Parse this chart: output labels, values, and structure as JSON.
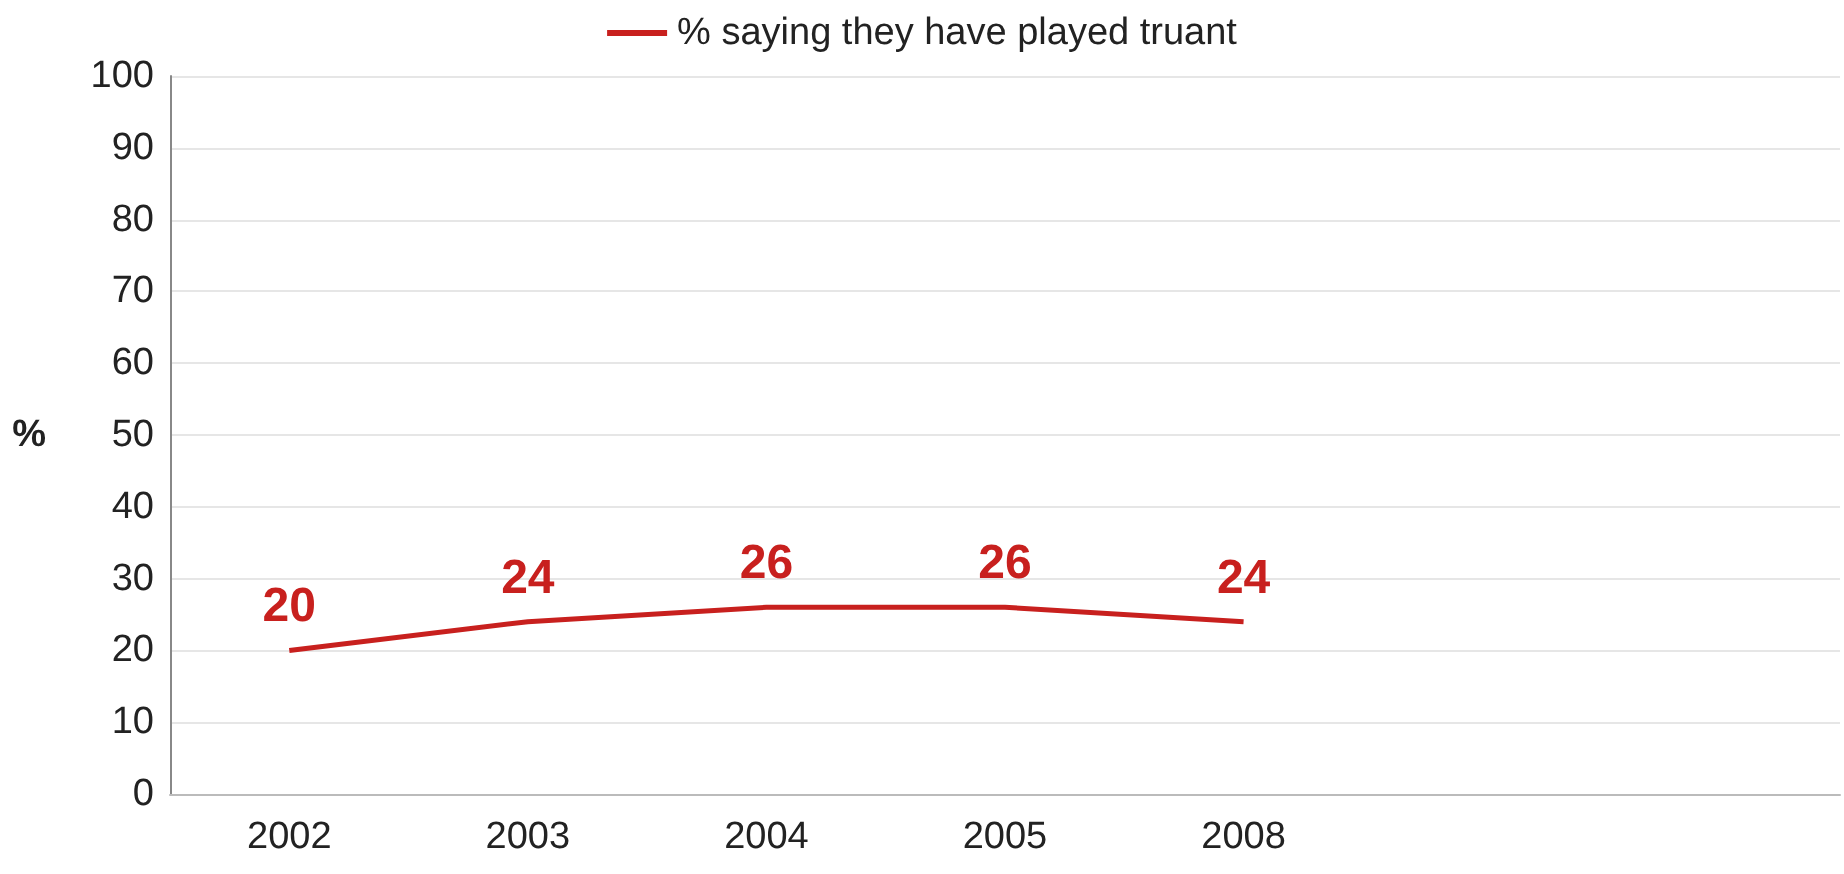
{
  "chart_data": {
    "type": "line",
    "ylabel": "%",
    "categories": [
      "2002",
      "2003",
      "2004",
      "2005",
      "2008",
      null,
      null
    ],
    "series": [
      {
        "name": "% saying they have played truant",
        "color": "#c8201e",
        "values": [
          20,
          24,
          26,
          26,
          24,
          null,
          null
        ]
      }
    ],
    "ylim": [
      0,
      100
    ],
    "yticks": [
      0,
      10,
      20,
      30,
      40,
      50,
      60,
      70,
      80,
      90,
      100
    ],
    "grid": "y",
    "legend": "top",
    "marker": "none",
    "data_labels": true
  }
}
